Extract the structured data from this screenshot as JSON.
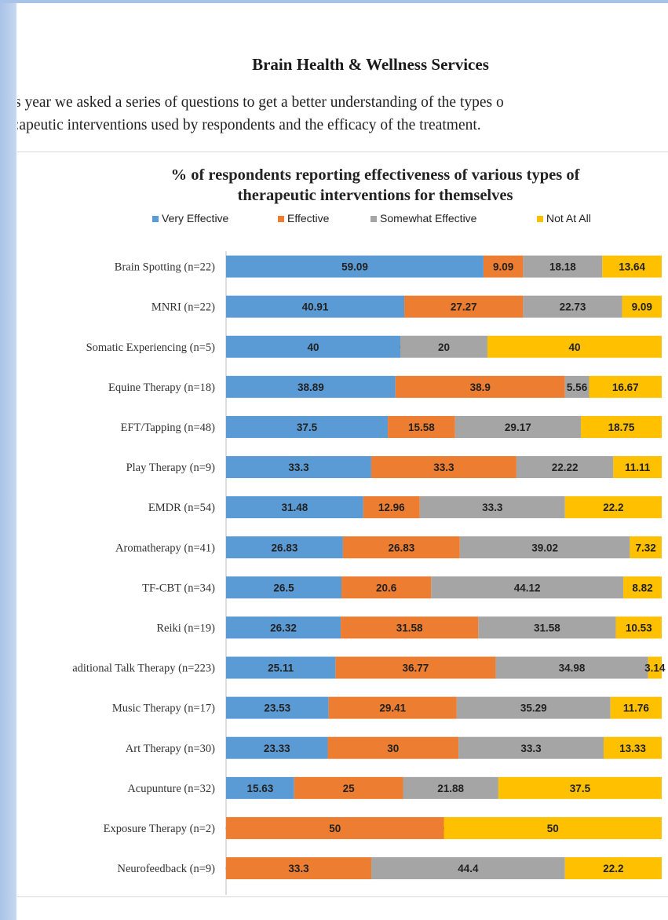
{
  "page": {
    "heading": "Brain Health & Wellness Services",
    "intro_line1": "s year we asked a series of questions to get a better understanding of the types o",
    "intro_line2": ":apeutic interventions used by respondents and the efficacy of the treatment."
  },
  "colors": {
    "very_effective": "#5b9bd5",
    "effective": "#ed7d31",
    "somewhat_effective": "#a5a5a5",
    "not_at_all": "#ffc000"
  },
  "chart_data": {
    "type": "bar",
    "orientation": "horizontal",
    "stacked": true,
    "title_line1": "% of respondents reporting effectiveness of various types of",
    "title_line2": "therapeutic interventions for themselves",
    "legend_position": "top",
    "grid": false,
    "categories": [
      "Brain Spotting (n=22)",
      "MNRI (n=22)",
      "Somatic Experiencing (n=5)",
      "Equine Therapy (n=18)",
      "EFT/Tapping (n=48)",
      "Play Therapy (n=9)",
      "EMDR (n=54)",
      "Aromatherapy (n=41)",
      "TF-CBT (n=34)",
      "Reiki (n=19)",
      "aditional Talk Therapy (n=223)",
      "Music Therapy (n=17)",
      "Art Therapy (n=30)",
      "Acupunture (n=32)",
      "Exposure Therapy (n=2)",
      "Neurofeedback (n=9)"
    ],
    "series": [
      {
        "name": "Very Effective",
        "color": "#5b9bd5",
        "values": [
          59.09,
          40.91,
          40,
          38.89,
          37.5,
          33.3,
          31.48,
          26.83,
          26.5,
          26.32,
          25.11,
          23.53,
          23.33,
          15.63,
          0,
          0
        ]
      },
      {
        "name": "Effective",
        "color": "#ed7d31",
        "values": [
          9.09,
          27.27,
          0,
          38.9,
          15.58,
          33.3,
          12.96,
          26.83,
          20.6,
          31.58,
          36.77,
          29.41,
          30,
          25,
          50,
          33.3
        ]
      },
      {
        "name": "Somewhat Effective",
        "color": "#a5a5a5",
        "values": [
          18.18,
          22.73,
          20,
          5.56,
          29.17,
          22.22,
          33.3,
          39.02,
          44.12,
          31.58,
          34.98,
          35.29,
          33.3,
          21.88,
          0,
          44.4
        ]
      },
      {
        "name": "Not At All",
        "color": "#ffc000",
        "values": [
          13.64,
          9.09,
          40,
          16.67,
          18.75,
          11.11,
          22.2,
          7.32,
          8.82,
          10.53,
          3.14,
          11.76,
          13.33,
          37.5,
          50,
          22.2
        ]
      }
    ]
  }
}
